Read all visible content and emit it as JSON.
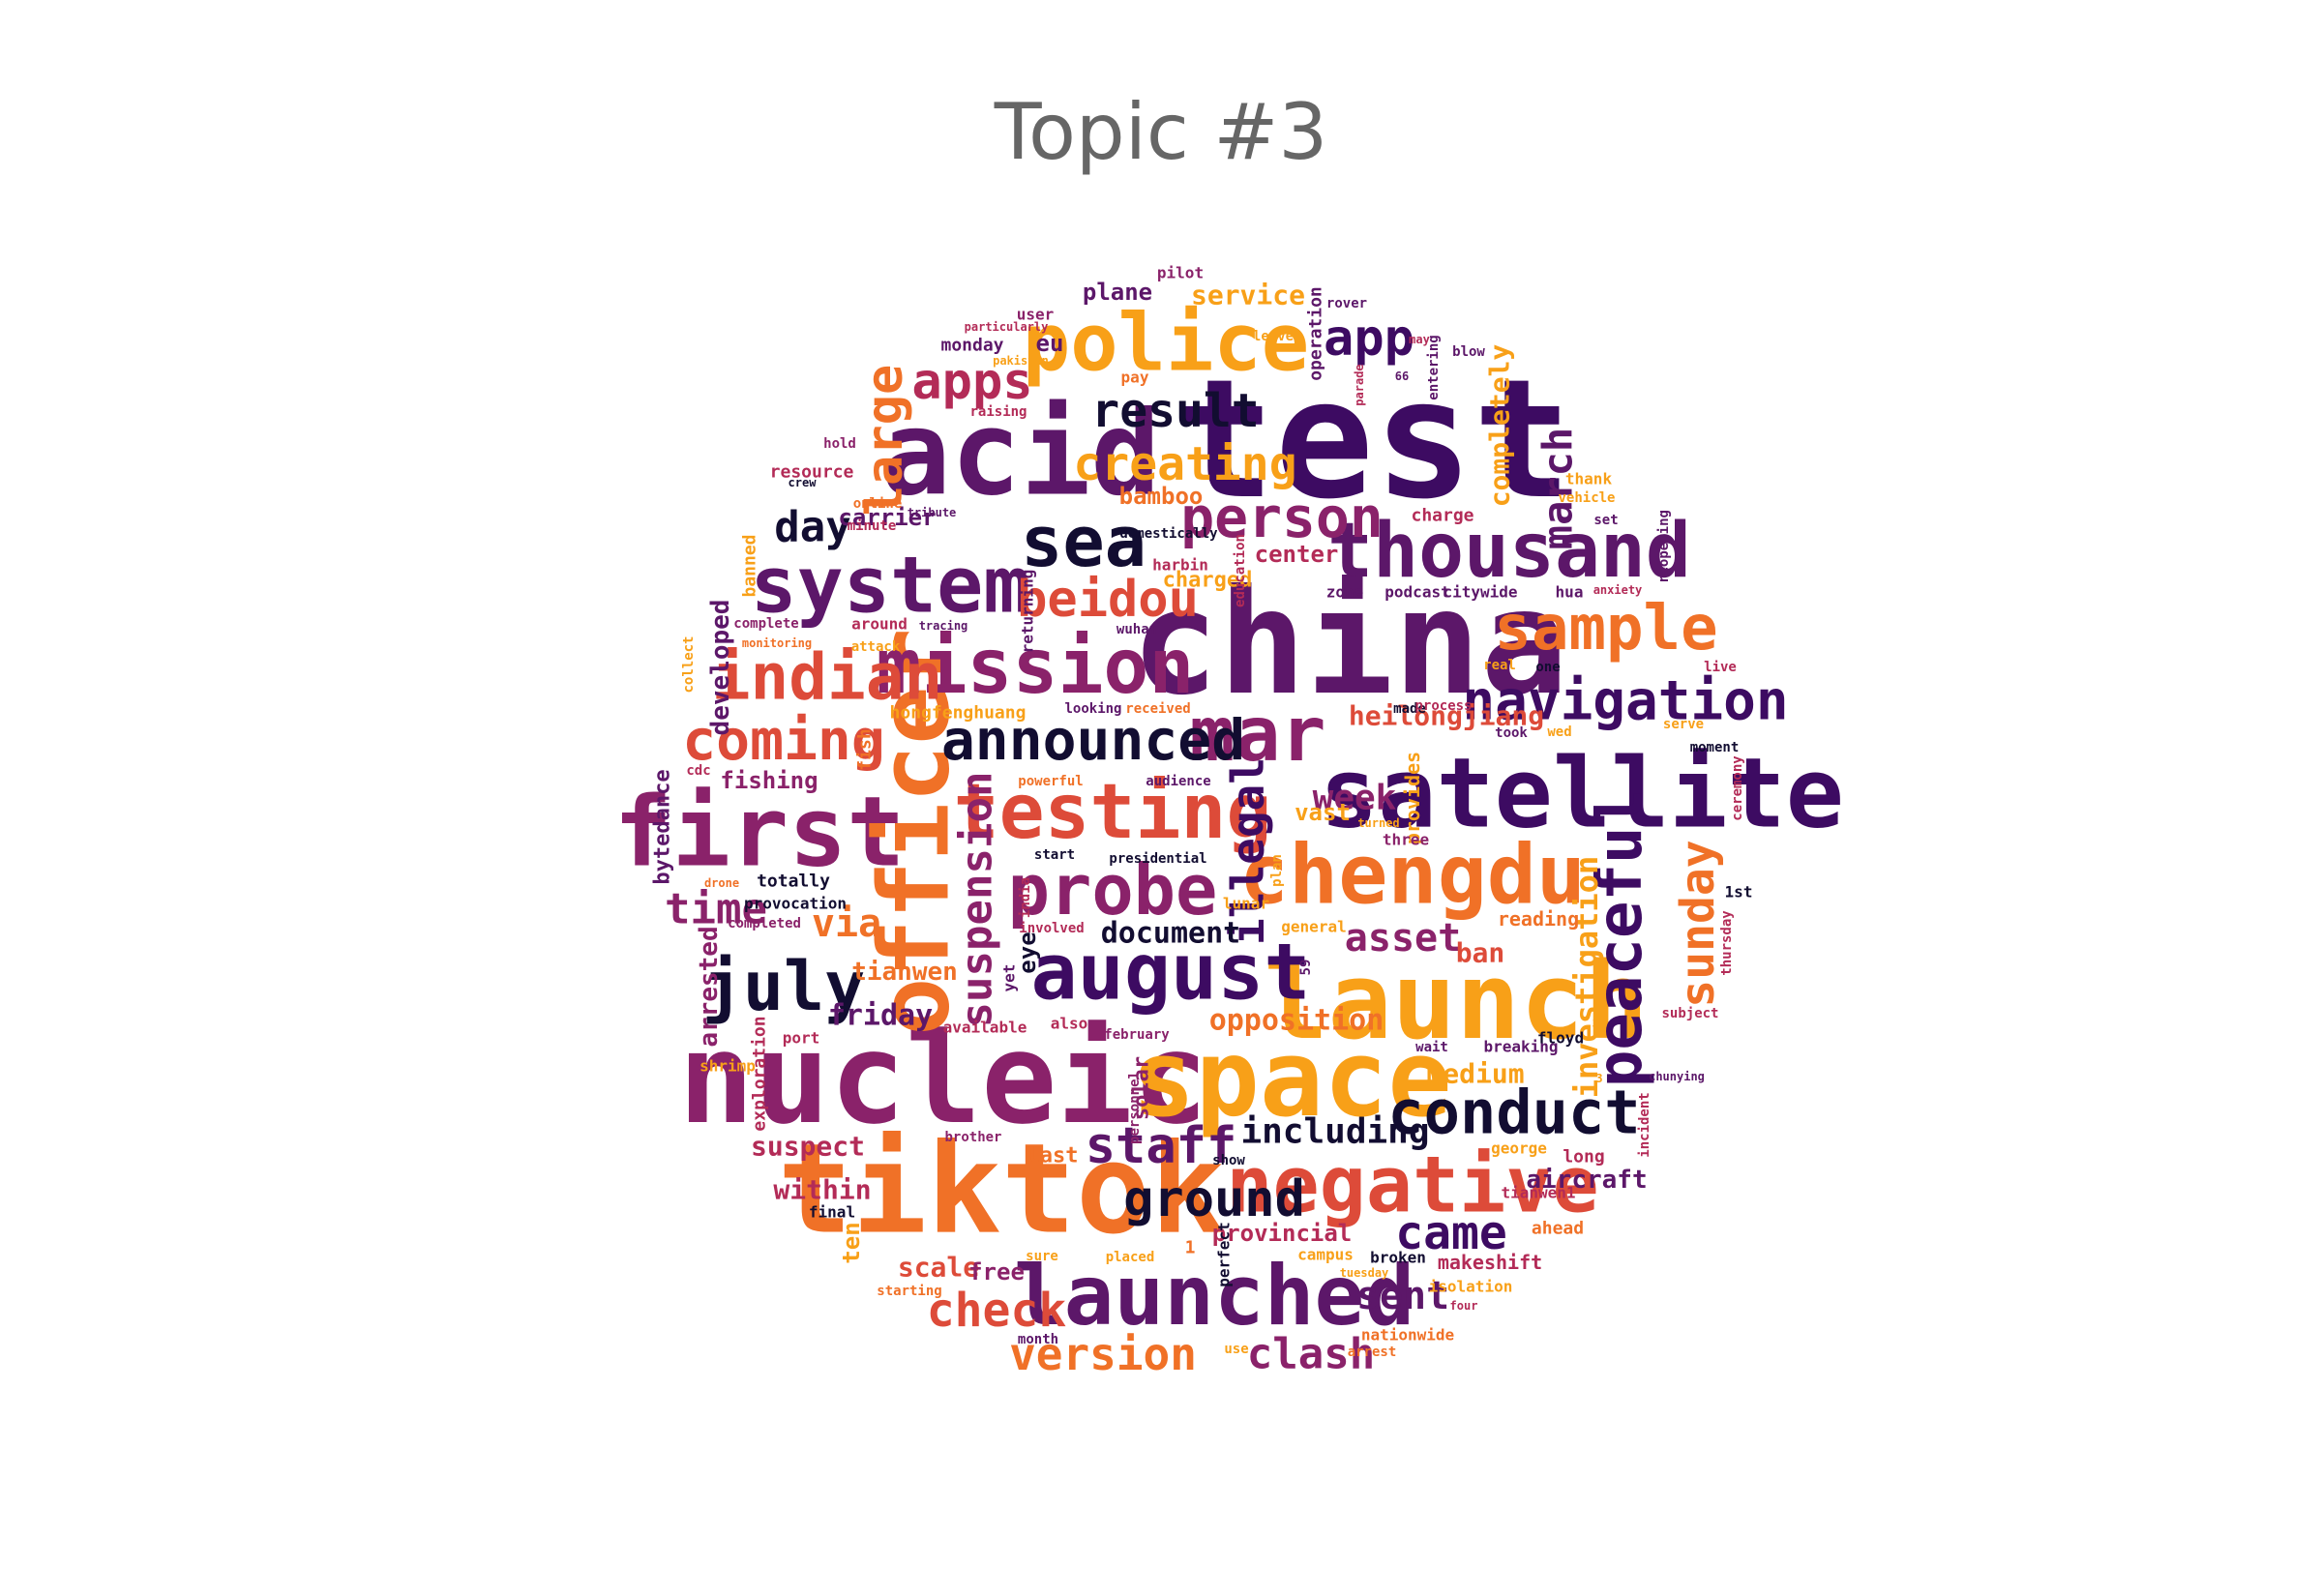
{
  "title": "Topic #3",
  "colors": {
    "black": "#120d31",
    "indigo": "#3d0b62",
    "purple": "#5c1769",
    "magenta": "#8a226a",
    "crimson": "#b32b57",
    "red": "#dd4b39",
    "orange": "#f07127",
    "amber": "#f8a018"
  },
  "words": [
    {
      "text": "test",
      "color": "indigo"
    },
    {
      "text": "china",
      "color": "purple"
    },
    {
      "text": "acid",
      "color": "purple"
    },
    {
      "text": "nucleic",
      "color": "magenta"
    },
    {
      "text": "tiktok",
      "color": "orange"
    },
    {
      "text": "space",
      "color": "amber"
    },
    {
      "text": "launch",
      "color": "amber"
    },
    {
      "text": "satellite",
      "color": "indigo"
    },
    {
      "text": "first",
      "color": "magenta"
    },
    {
      "text": "officer",
      "color": "orange"
    },
    {
      "text": "mission",
      "color": "magenta"
    },
    {
      "text": "system",
      "color": "purple"
    },
    {
      "text": "chengdu",
      "color": "orange"
    },
    {
      "text": "negative",
      "color": "red"
    },
    {
      "text": "launched",
      "color": "purple"
    },
    {
      "text": "august",
      "color": "indigo"
    },
    {
      "text": "mar",
      "color": "magenta"
    },
    {
      "text": "police",
      "color": "amber"
    },
    {
      "text": "thousand",
      "color": "purple"
    },
    {
      "text": "testing",
      "color": "red"
    },
    {
      "text": "probe",
      "color": "magenta"
    },
    {
      "text": "sea",
      "color": "black"
    },
    {
      "text": "conduct",
      "color": "black"
    },
    {
      "text": "peaceful",
      "color": "indigo"
    },
    {
      "text": "announced",
      "color": "black"
    },
    {
      "text": "indian",
      "color": "red"
    },
    {
      "text": "sample",
      "color": "orange"
    },
    {
      "text": "navigation",
      "color": "indigo"
    },
    {
      "text": "july",
      "color": "black"
    },
    {
      "text": "coming",
      "color": "red"
    },
    {
      "text": "person",
      "color": "magenta"
    },
    {
      "text": "beidou",
      "color": "red"
    },
    {
      "text": "check",
      "color": "red"
    },
    {
      "text": "staff",
      "color": "purple"
    },
    {
      "text": "ground",
      "color": "black"
    },
    {
      "text": "came",
      "color": "indigo"
    },
    {
      "text": "sunday",
      "color": "orange"
    },
    {
      "text": "apps",
      "color": "crimson"
    },
    {
      "text": "app",
      "color": "indigo"
    },
    {
      "text": "result",
      "color": "black"
    },
    {
      "text": "creating",
      "color": "amber"
    },
    {
      "text": "large",
      "color": "orange"
    },
    {
      "text": "march",
      "color": "purple"
    },
    {
      "text": "suspension",
      "color": "magenta"
    },
    {
      "text": "illegal",
      "color": "indigo"
    },
    {
      "text": "version",
      "color": "orange"
    },
    {
      "text": "clash",
      "color": "magenta"
    },
    {
      "text": "sent",
      "color": "purple"
    },
    {
      "text": "asset",
      "color": "magenta"
    },
    {
      "text": "week",
      "color": "magenta"
    },
    {
      "text": "time",
      "color": "magenta"
    },
    {
      "text": "day",
      "color": "black"
    },
    {
      "text": "via",
      "color": "orange"
    },
    {
      "text": "document",
      "color": "black"
    },
    {
      "text": "including",
      "color": "black"
    },
    {
      "text": "investigation",
      "color": "amber"
    },
    {
      "text": "opposition",
      "color": "orange"
    },
    {
      "text": "completely",
      "color": "amber"
    },
    {
      "text": "service",
      "color": "amber"
    },
    {
      "text": "heilongjiang",
      "color": "red"
    },
    {
      "text": "medium",
      "color": "amber"
    },
    {
      "text": "friday",
      "color": "purple"
    },
    {
      "text": "tianwen",
      "color": "orange"
    },
    {
      "text": "arrested",
      "color": "magenta"
    },
    {
      "text": "developed",
      "color": "purple"
    },
    {
      "text": "suspect",
      "color": "crimson"
    },
    {
      "text": "within",
      "color": "crimson"
    },
    {
      "text": "scale",
      "color": "red"
    },
    {
      "text": "free",
      "color": "magenta"
    },
    {
      "text": "provincial",
      "color": "crimson"
    },
    {
      "text": "makeshift",
      "color": "crimson"
    },
    {
      "text": "aircraft",
      "color": "purple"
    },
    {
      "text": "ban",
      "color": "red"
    },
    {
      "text": "fishing",
      "color": "magenta"
    },
    {
      "text": "carrier",
      "color": "purple"
    },
    {
      "text": "plane",
      "color": "purple"
    },
    {
      "text": "monday",
      "color": "purple"
    },
    {
      "text": "eu",
      "color": "purple"
    },
    {
      "text": "bamboo",
      "color": "orange"
    },
    {
      "text": "center",
      "color": "crimson"
    },
    {
      "text": "eye",
      "color": "black"
    },
    {
      "text": "operation",
      "color": "purple"
    },
    {
      "text": "bytedance",
      "color": "purple"
    },
    {
      "text": "exploration",
      "color": "crimson"
    },
    {
      "text": "ten",
      "color": "amber"
    },
    {
      "text": "last",
      "color": "orange"
    },
    {
      "text": "solar",
      "color": "magenta"
    },
    {
      "text": "reading",
      "color": "orange"
    },
    {
      "text": "vast",
      "color": "amber"
    },
    {
      "text": "provides",
      "color": "amber"
    },
    {
      "text": "ahead",
      "color": "orange"
    },
    {
      "text": "long",
      "color": "crimson"
    },
    {
      "text": "floyd",
      "color": "black"
    },
    {
      "text": "breaking",
      "color": "purple"
    },
    {
      "text": "1st",
      "color": "black"
    },
    {
      "text": "thursday",
      "color": "crimson"
    },
    {
      "text": "ceremony",
      "color": "crimson"
    },
    {
      "text": "incident",
      "color": "crimson"
    },
    {
      "text": "subject",
      "color": "crimson"
    },
    {
      "text": "serve",
      "color": "amber"
    },
    {
      "text": "moment",
      "color": "black"
    },
    {
      "text": "live",
      "color": "crimson"
    },
    {
      "text": "reopening",
      "color": "purple"
    },
    {
      "text": "set",
      "color": "purple"
    },
    {
      "text": "vehicle",
      "color": "amber"
    },
    {
      "text": "thank",
      "color": "amber"
    },
    {
      "text": "hua",
      "color": "purple"
    },
    {
      "text": "anxiety",
      "color": "crimson"
    },
    {
      "text": "charge",
      "color": "crimson"
    },
    {
      "text": "zone",
      "color": "purple"
    },
    {
      "text": "podcast",
      "color": "purple"
    },
    {
      "text": "citywide",
      "color": "purple"
    },
    {
      "text": "real",
      "color": "amber"
    },
    {
      "text": "one",
      "color": "black"
    },
    {
      "text": "made",
      "color": "black"
    },
    {
      "text": "process",
      "color": "crimson"
    },
    {
      "text": "took",
      "color": "purple"
    },
    {
      "text": "wed",
      "color": "amber"
    },
    {
      "text": "charged",
      "color": "amber"
    },
    {
      "text": "harbin",
      "color": "crimson"
    },
    {
      "text": "domestically",
      "color": "black"
    },
    {
      "text": "education",
      "color": "crimson"
    },
    {
      "text": "wuhan",
      "color": "purple"
    },
    {
      "text": "returning",
      "color": "purple"
    },
    {
      "text": "around",
      "color": "crimson"
    },
    {
      "text": "attack",
      "color": "amber"
    },
    {
      "text": "tracing",
      "color": "purple"
    },
    {
      "text": "complete",
      "color": "magenta"
    },
    {
      "text": "monitoring",
      "color": "orange"
    },
    {
      "text": "banned",
      "color": "amber"
    },
    {
      "text": "minute",
      "color": "crimson"
    },
    {
      "text": "tribute",
      "color": "purple"
    },
    {
      "text": "online",
      "color": "orange"
    },
    {
      "text": "resource",
      "color": "crimson"
    },
    {
      "text": "crew",
      "color": "black"
    },
    {
      "text": "hold",
      "color": "magenta"
    },
    {
      "text": "raising",
      "color": "crimson"
    },
    {
      "text": "user",
      "color": "magenta"
    },
    {
      "text": "particularly",
      "color": "crimson"
    },
    {
      "text": "pakistan",
      "color": "amber"
    },
    {
      "text": "pay",
      "color": "orange"
    },
    {
      "text": "pilot",
      "color": "magenta"
    },
    {
      "text": "leave",
      "color": "amber"
    },
    {
      "text": "rover",
      "color": "purple"
    },
    {
      "text": "may",
      "color": "crimson"
    },
    {
      "text": "blow",
      "color": "purple"
    },
    {
      "text": "entering",
      "color": "purple"
    },
    {
      "text": "66",
      "color": "purple"
    },
    {
      "text": "parade",
      "color": "crimson"
    },
    {
      "text": "collect",
      "color": "amber"
    },
    {
      "text": "cdc",
      "color": "crimson"
    },
    {
      "text": "drone",
      "color": "orange"
    },
    {
      "text": "provocation",
      "color": "black"
    },
    {
      "text": "totally",
      "color": "black"
    },
    {
      "text": "completed",
      "color": "magenta"
    },
    {
      "text": "fish",
      "color": "orange"
    },
    {
      "text": "hongfenghuang",
      "color": "amber"
    },
    {
      "text": "looking",
      "color": "purple"
    },
    {
      "text": "received",
      "color": "orange"
    },
    {
      "text": "powerful",
      "color": "orange"
    },
    {
      "text": "audience",
      "color": "purple"
    },
    {
      "text": "start",
      "color": "black"
    },
    {
      "text": "india",
      "color": "crimson"
    },
    {
      "text": "presidential",
      "color": "black"
    },
    {
      "text": "lunar",
      "color": "amber"
    },
    {
      "text": "plan",
      "color": "amber"
    },
    {
      "text": "turned",
      "color": "amber"
    },
    {
      "text": "three",
      "color": "magenta"
    },
    {
      "text": "general",
      "color": "amber"
    },
    {
      "text": "59",
      "color": "purple"
    },
    {
      "text": "involved",
      "color": "crimson"
    },
    {
      "text": "yet",
      "color": "purple"
    },
    {
      "text": "also",
      "color": "crimson"
    },
    {
      "text": "available",
      "color": "crimson"
    },
    {
      "text": "port",
      "color": "crimson"
    },
    {
      "text": "shrimp",
      "color": "amber"
    },
    {
      "text": "february",
      "color": "magenta"
    },
    {
      "text": "personnel",
      "color": "magenta"
    },
    {
      "text": "brother",
      "color": "magenta"
    },
    {
      "text": "show",
      "color": "black"
    },
    {
      "text": "wait",
      "color": "purple"
    },
    {
      "text": "3",
      "color": "amber"
    },
    {
      "text": "chunying",
      "color": "purple"
    },
    {
      "text": "george",
      "color": "amber"
    },
    {
      "text": "tianwen1",
      "color": "crimson"
    },
    {
      "text": "final",
      "color": "black"
    },
    {
      "text": "1",
      "color": "orange"
    },
    {
      "text": "perfect",
      "color": "black"
    },
    {
      "text": "placed",
      "color": "amber"
    },
    {
      "text": "sure",
      "color": "amber"
    },
    {
      "text": "campus",
      "color": "amber"
    },
    {
      "text": "broken",
      "color": "black"
    },
    {
      "text": "tuesday",
      "color": "amber"
    },
    {
      "text": "isolation",
      "color": "amber"
    },
    {
      "text": "four",
      "color": "crimson"
    },
    {
      "text": "starting",
      "color": "orange"
    },
    {
      "text": "month",
      "color": "purple"
    },
    {
      "text": "use",
      "color": "amber"
    },
    {
      "text": "arrest",
      "color": "orange"
    },
    {
      "text": "nationwide",
      "color": "orange"
    }
  ]
}
